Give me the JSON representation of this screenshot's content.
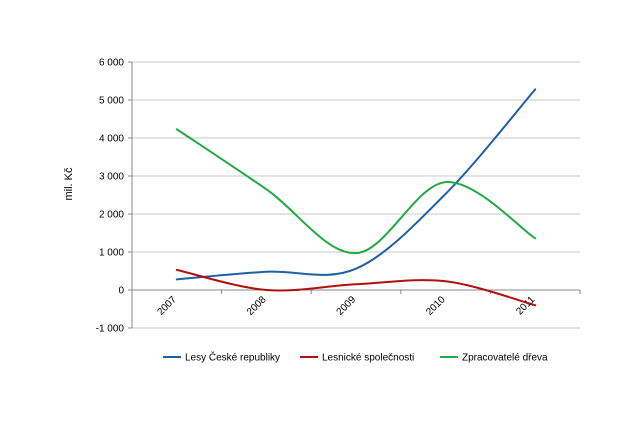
{
  "chart_data": {
    "type": "line",
    "title": "",
    "xlabel": "",
    "ylabel": "mil. Kč",
    "categories": [
      "2007",
      "2008",
      "2009",
      "2010",
      "2011"
    ],
    "ylim": [
      -1000,
      6000
    ],
    "yticks": [
      6000,
      5000,
      4000,
      3000,
      2000,
      1000,
      0,
      -1000
    ],
    "ytick_labels": [
      "6 000",
      "5 000",
      "4 000",
      "3 000",
      "2 000",
      "1 000",
      "0",
      "-1 000"
    ],
    "grid": "horizontal",
    "legend_position": "bottom",
    "series": [
      {
        "name": "Lesy České republiky",
        "color": "#1f5fa6",
        "values": [
          280,
          480,
          560,
          2530,
          5280
        ]
      },
      {
        "name": "Lesnické společnosti",
        "color": "#b01010",
        "values": [
          530,
          0,
          150,
          230,
          -400
        ]
      },
      {
        "name": "Zpracovatelé dřeva",
        "color": "#22aa44",
        "values": [
          4230,
          2650,
          970,
          2840,
          1360
        ]
      }
    ]
  }
}
